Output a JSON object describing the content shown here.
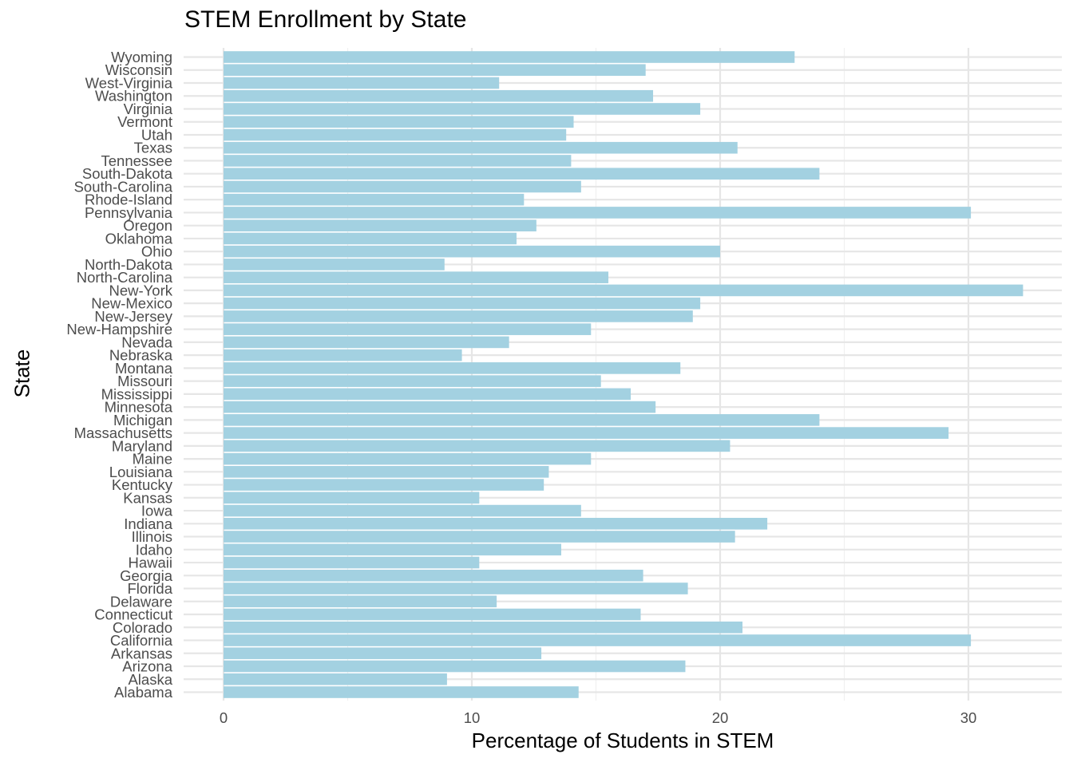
{
  "chart_data": {
    "type": "bar",
    "orientation": "horizontal",
    "title": "STEM Enrollment by State",
    "xlabel": "Percentage of Students in STEM",
    "ylabel": "State",
    "xlim": [
      0,
      33
    ],
    "x_ticks": [
      0,
      10,
      20,
      30
    ],
    "grid": true,
    "colors": {
      "bar": "#a3d1e1",
      "grid_major": "#e6e6e6",
      "grid_minor": "#f0f0f0",
      "tick_text": "#4d4d4d"
    },
    "categories": [
      "Alabama",
      "Alaska",
      "Arizona",
      "Arkansas",
      "California",
      "Colorado",
      "Connecticut",
      "Delaware",
      "Florida",
      "Georgia",
      "Hawaii",
      "Idaho",
      "Illinois",
      "Indiana",
      "Iowa",
      "Kansas",
      "Kentucky",
      "Louisiana",
      "Maine",
      "Maryland",
      "Massachusetts",
      "Michigan",
      "Minnesota",
      "Mississippi",
      "Missouri",
      "Montana",
      "Nebraska",
      "Nevada",
      "New-Hampshire",
      "New-Jersey",
      "New-Mexico",
      "New-York",
      "North-Carolina",
      "North-Dakota",
      "Ohio",
      "Oklahoma",
      "Oregon",
      "Pennsylvania",
      "Rhode-Island",
      "South-Carolina",
      "South-Dakota",
      "Tennessee",
      "Texas",
      "Utah",
      "Vermont",
      "Virginia",
      "Washington",
      "West-Virginia",
      "Wisconsin",
      "Wyoming"
    ],
    "values": [
      14.3,
      9.0,
      18.6,
      12.8,
      30.1,
      20.9,
      16.8,
      11.0,
      18.7,
      16.9,
      10.3,
      13.6,
      20.6,
      21.9,
      14.4,
      10.3,
      12.9,
      13.1,
      14.8,
      20.4,
      29.2,
      24.0,
      17.4,
      16.4,
      15.2,
      18.4,
      9.6,
      11.5,
      14.8,
      18.9,
      19.2,
      32.2,
      15.5,
      8.9,
      20.0,
      11.8,
      12.6,
      30.1,
      12.1,
      14.4,
      24.0,
      14.0,
      20.7,
      13.8,
      14.1,
      19.2,
      17.3,
      11.1,
      17.0,
      23.0
    ]
  }
}
